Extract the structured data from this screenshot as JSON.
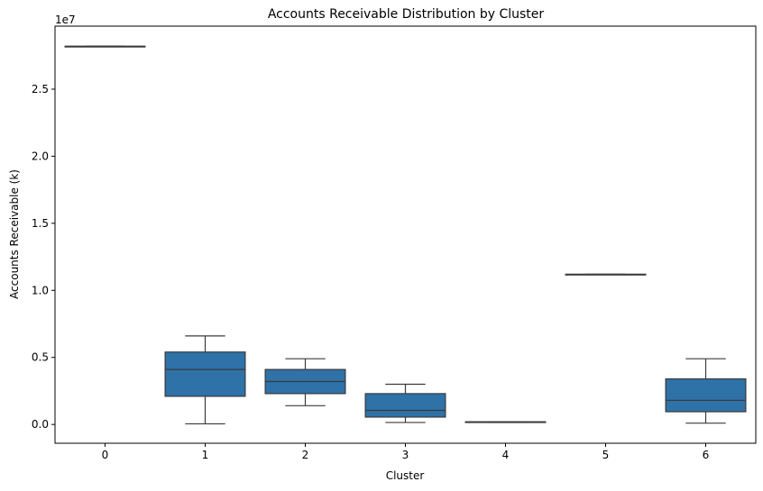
{
  "chart_data": {
    "type": "box",
    "title": "Accounts Receivable Distribution by Cluster",
    "xlabel": "Cluster",
    "ylabel": "Accounts Receivable (k)",
    "y_offset_label": "1e7",
    "ylim": [
      -1400000,
      29700000
    ],
    "yticks": [
      0,
      5000000,
      10000000,
      15000000,
      20000000,
      25000000
    ],
    "ytick_labels": [
      "0.0",
      "0.5",
      "1.0",
      "1.5",
      "2.0",
      "2.5"
    ],
    "grid": false,
    "box_color": "#2e72a8",
    "line_color": "#3b3b3b",
    "categories": [
      "0",
      "1",
      "2",
      "3",
      "4",
      "5",
      "6"
    ],
    "boxes": [
      {
        "cluster": "0",
        "whislo": 28200000,
        "q1": 28200000,
        "med": 28200000,
        "q3": 28200000,
        "whishi": 28200000
      },
      {
        "cluster": "1",
        "whislo": 50000,
        "q1": 2100000,
        "med": 4100000,
        "q3": 5400000,
        "whishi": 6600000
      },
      {
        "cluster": "2",
        "whislo": 1400000,
        "q1": 2300000,
        "med": 3200000,
        "q3": 4100000,
        "whishi": 4900000
      },
      {
        "cluster": "3",
        "whislo": 150000,
        "q1": 550000,
        "med": 1050000,
        "q3": 2300000,
        "whishi": 3000000
      },
      {
        "cluster": "4",
        "whislo": 200000,
        "q1": 200000,
        "med": 200000,
        "q3": 200000,
        "whishi": 200000
      },
      {
        "cluster": "5",
        "whislo": 11200000,
        "q1": 11200000,
        "med": 11200000,
        "q3": 11200000,
        "whishi": 11200000
      },
      {
        "cluster": "6",
        "whislo": 100000,
        "q1": 950000,
        "med": 1800000,
        "q3": 3400000,
        "whishi": 4900000
      }
    ]
  }
}
